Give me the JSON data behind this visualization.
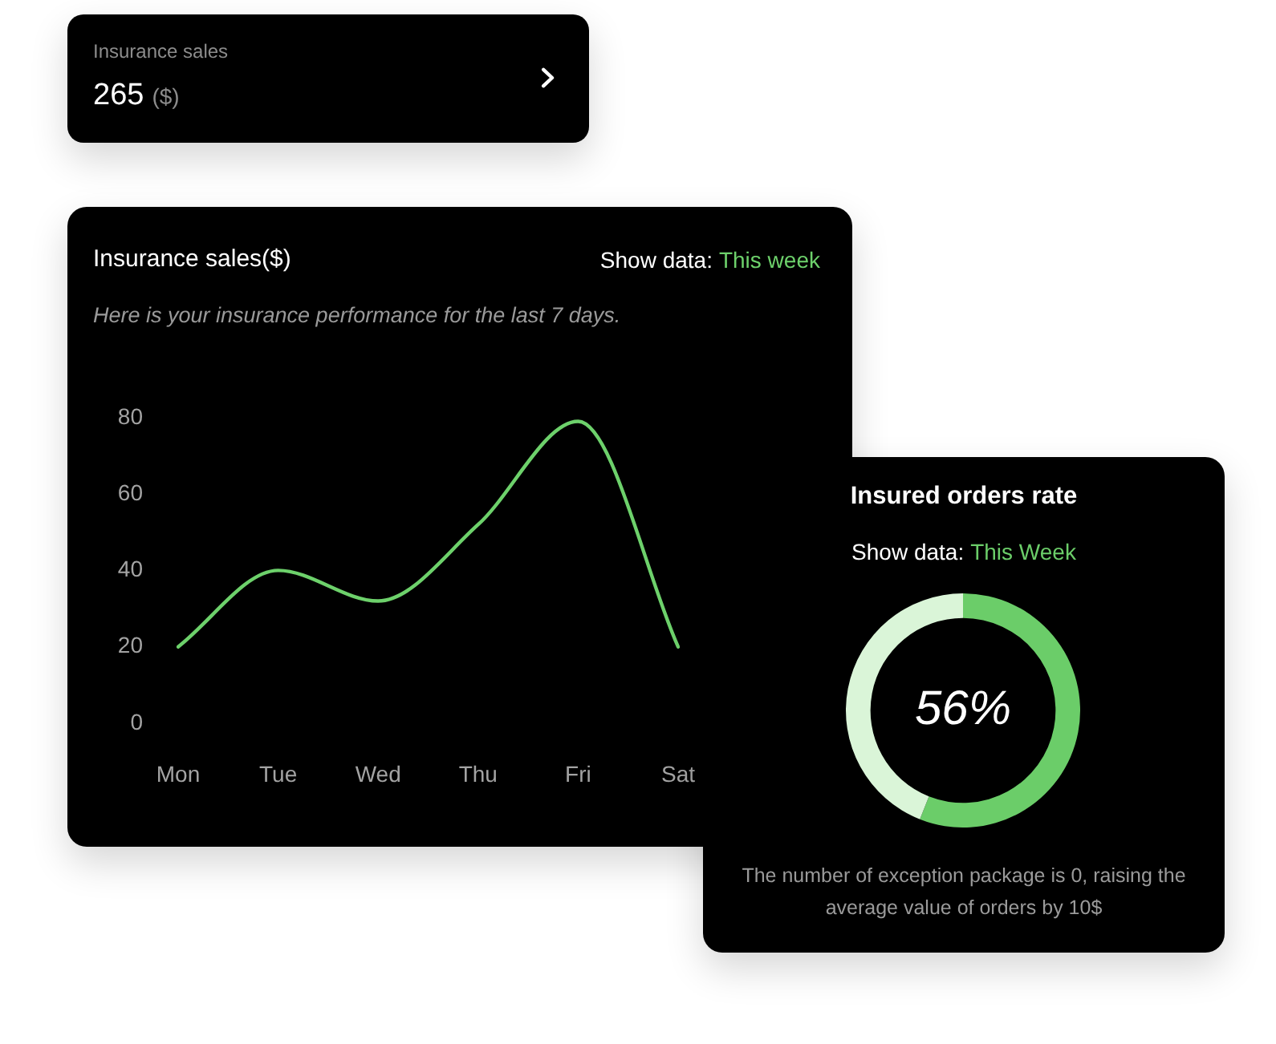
{
  "chart_data": [
    {
      "type": "other",
      "title": "Insurance sales",
      "annotations": [
        "265",
        "($)"
      ]
    },
    {
      "type": "line",
      "title": "Insurance sales($)",
      "subtitle": "Here is your insurance performance for the last 7 days.",
      "annotations": [
        "Show data:",
        "This week"
      ],
      "categories": [
        "Mon",
        "Tue",
        "Wed",
        "Thu",
        "Fri",
        "Sat"
      ],
      "series": [
        {
          "color": "#6dd16b",
          "values": [
            20,
            40,
            32,
            52,
            79,
            20
          ]
        }
      ],
      "ylim": [
        0,
        80
      ],
      "yticks": [
        0,
        20,
        40,
        60,
        80
      ]
    },
    {
      "type": "donut",
      "title": "Insured orders rate",
      "annotations": [
        "Show data:",
        "This Week",
        "The number of exception package is 0, raising the average value of orders by 10$"
      ],
      "categories": [
        null,
        null
      ],
      "values": [
        56,
        44
      ],
      "colors": [
        "#6bcd69",
        "#daf5d8"
      ],
      "value_labels": [
        "56%",
        null
      ]
    }
  ]
}
